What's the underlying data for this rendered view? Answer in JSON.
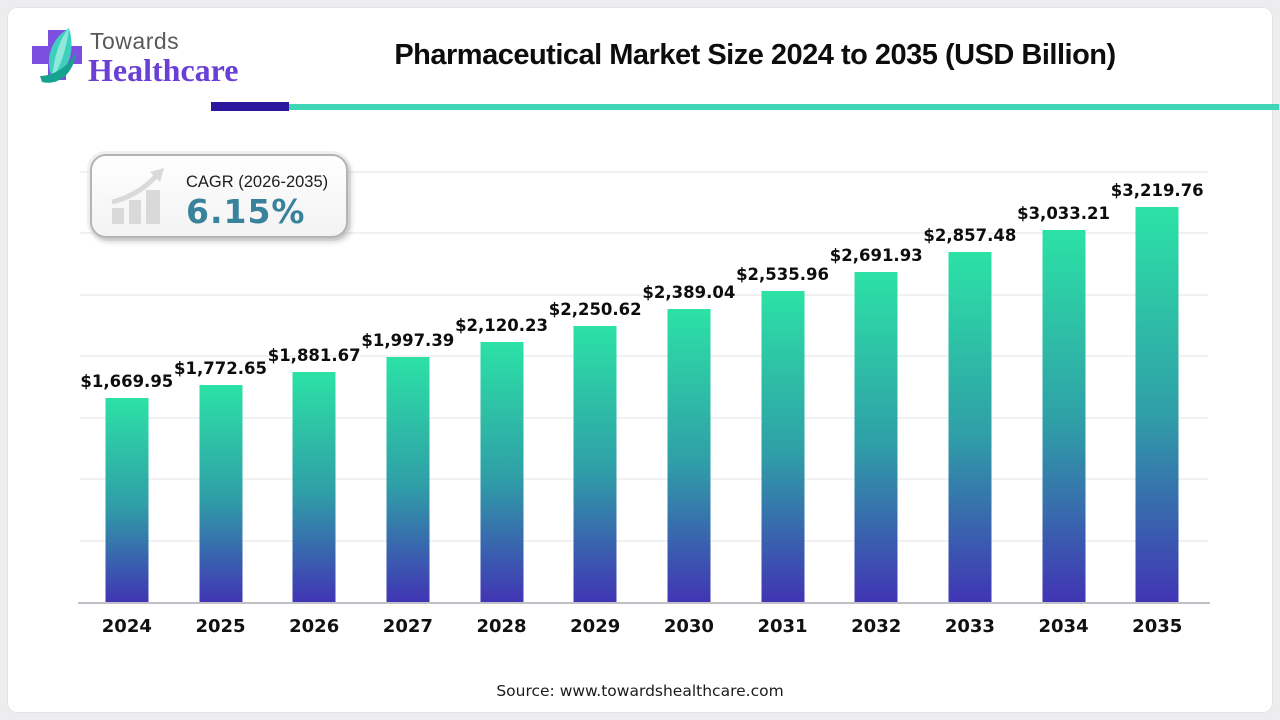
{
  "header": {
    "logo_line1": "Towards",
    "logo_line2": "Healthcare",
    "title": "Pharmaceutical Market Size 2024 to 2035 (USD Billion)"
  },
  "cagr_badge": {
    "label": "CAGR (2026-2035)",
    "value": "6.15%"
  },
  "chart_data": {
    "type": "bar",
    "title": "Pharmaceutical Market Size 2024 to 2035 (USD Billion)",
    "xlabel": "",
    "ylabel": "",
    "categories": [
      "2024",
      "2025",
      "2026",
      "2027",
      "2028",
      "2029",
      "2030",
      "2031",
      "2032",
      "2033",
      "2034",
      "2035"
    ],
    "values": [
      1669.95,
      1772.65,
      1881.67,
      1997.39,
      2120.23,
      2250.62,
      2389.04,
      2535.96,
      2691.93,
      2857.48,
      3033.21,
      3219.76
    ],
    "value_labels": [
      "$1,669.95",
      "$1,772.65",
      "$1,881.67",
      "$1,997.39",
      "$2,120.23",
      "$2,250.62",
      "$2,389.04",
      "$2,535.96",
      "$2,691.93",
      "$2,857.48",
      "$3,033.21",
      "$3,219.76"
    ],
    "ylim": [
      0,
      3740
    ],
    "grid_step": 500,
    "grid_on": true,
    "legend_position": "none"
  },
  "source": {
    "text": "Source: www.towardshealthcare.com"
  },
  "colors": {
    "bar_gradient_top": "#2ce2a6",
    "bar_gradient_mid": "#2f9fa7",
    "bar_gradient_bottom": "#4134b4",
    "underline_purple": "#2d179c",
    "underline_teal": "#3fd6b6",
    "cagr_value_text": "#38829b",
    "logo_purple": "#6a3fd6",
    "logo_cross": "#7d4fe0",
    "logo_leaf": "#3fd0bd",
    "axis_line": "#bfbfc5",
    "gridline": "#f1f1f4"
  }
}
